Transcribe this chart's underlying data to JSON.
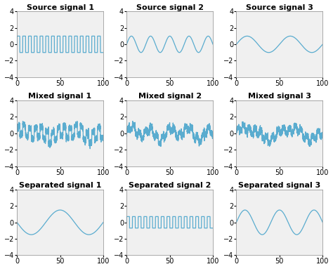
{
  "titles": [
    [
      "Source signal 1",
      "Source signal 2",
      "Source signal 3"
    ],
    [
      "Mixed signal 1",
      "Mixed signal 2",
      "Mixed signal 3"
    ],
    [
      "Separated signal 1",
      "Separated signal 2",
      "Separated signal 3"
    ]
  ],
  "ylim": [
    -4,
    4
  ],
  "xlim": [
    0,
    100
  ],
  "xticks": [
    0,
    50,
    100
  ],
  "yticks": [
    -4,
    -2,
    0,
    2,
    4
  ],
  "line_color": "#5aaccf",
  "line_width": 0.9,
  "background_color": "#ffffff",
  "axes_bg_color": "#f0f0f0",
  "title_fontsize": 8.0,
  "tick_fontsize": 7.0,
  "figsize": [
    4.74,
    3.83
  ],
  "dpi": 100
}
